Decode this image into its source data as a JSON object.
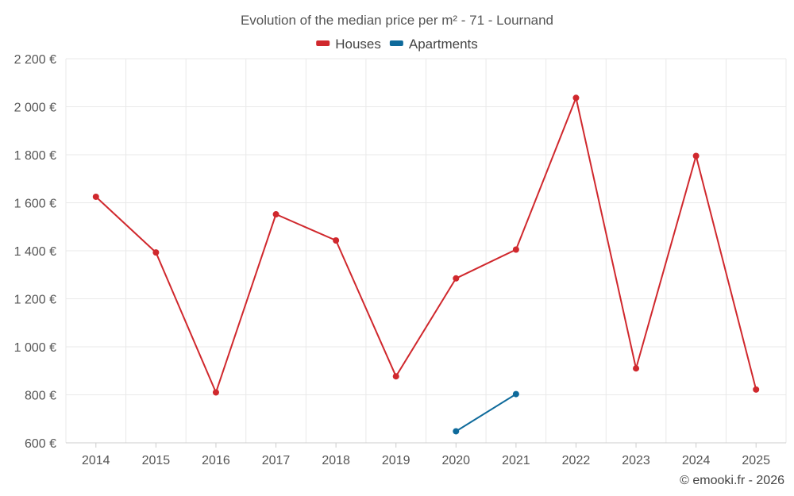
{
  "chart_data": {
    "type": "line",
    "title": "Evolution of the median price per m² - 71 - Lournand",
    "categories": [
      "2014",
      "2015",
      "2016",
      "2017",
      "2018",
      "2019",
      "2020",
      "2021",
      "2022",
      "2023",
      "2024",
      "2025"
    ],
    "y_ticks": [
      600,
      800,
      1000,
      1200,
      1400,
      1600,
      1800,
      2000,
      2200
    ],
    "y_tick_labels": [
      "600 €",
      "800 €",
      "1 000 €",
      "1 200 €",
      "1 400 €",
      "1 600 €",
      "1 800 €",
      "2 000 €",
      "2 200 €"
    ],
    "ylim": [
      600,
      2200
    ],
    "grid": true,
    "legend_position": "top-center",
    "series": [
      {
        "name": "Houses",
        "color": "#d0282d",
        "values": [
          1625,
          1393,
          810,
          1552,
          1443,
          877,
          1285,
          1405,
          2037,
          910,
          1795,
          822
        ]
      },
      {
        "name": "Apartments",
        "color": "#0e6a9b",
        "values": [
          null,
          null,
          null,
          null,
          null,
          null,
          648,
          803,
          null,
          null,
          null,
          null
        ]
      }
    ],
    "xlabel": "",
    "ylabel": ""
  },
  "credit": "© emooki.fr - 2026"
}
